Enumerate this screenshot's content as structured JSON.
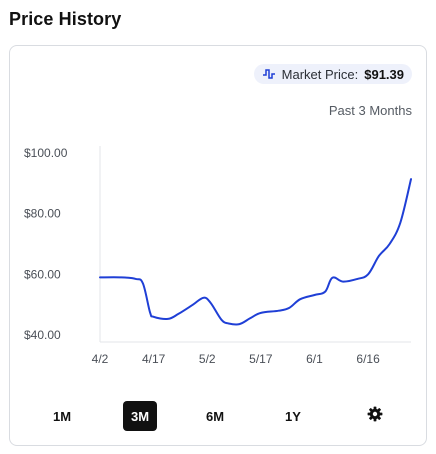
{
  "page": {
    "title": "Price History"
  },
  "market": {
    "label": "Market Price:",
    "value": "$91.39",
    "icon": "price-line-icon"
  },
  "range_label": "Past 3 Months",
  "ranges": [
    {
      "label": "1M",
      "active": false
    },
    {
      "label": "3M",
      "active": true
    },
    {
      "label": "6M",
      "active": false
    },
    {
      "label": "1Y",
      "active": false
    }
  ],
  "settings_icon": "gear-icon",
  "colors": {
    "line": "#1f3fd6",
    "active_bg": "#111111",
    "pill_bg": "#eef1fb"
  },
  "chart_data": {
    "type": "line",
    "title": "",
    "xlabel": "",
    "ylabel": "",
    "yticks": [
      "$100.00",
      "$80.00",
      "$60.00",
      "$40.00"
    ],
    "ytick_values": [
      100,
      80,
      60,
      40
    ],
    "xticks": [
      "4/2",
      "4/17",
      "5/2",
      "5/17",
      "6/1",
      "6/16"
    ],
    "ylim": [
      40,
      100
    ],
    "series": [
      {
        "values": [
          [
            "4/2",
            59.0
          ],
          [
            "4/8",
            59.0
          ],
          [
            "4/12",
            58.5
          ],
          [
            "4/14",
            57.0
          ],
          [
            "4/16",
            47.5
          ],
          [
            "4/17",
            46.0
          ],
          [
            "4/21",
            45.3
          ],
          [
            "4/24",
            47.0
          ],
          [
            "4/28",
            50.0
          ],
          [
            "5/1",
            52.3
          ],
          [
            "5/3",
            50.5
          ],
          [
            "5/6",
            45.0
          ],
          [
            "5/8",
            43.8
          ],
          [
            "5/11",
            43.6
          ],
          [
            "5/14",
            45.5
          ],
          [
            "5/17",
            47.3
          ],
          [
            "5/22",
            48.0
          ],
          [
            "5/25",
            49.0
          ],
          [
            "5/28",
            51.8
          ],
          [
            "6/1",
            53.2
          ],
          [
            "6/4",
            54.3
          ],
          [
            "6/6",
            58.9
          ],
          [
            "6/9",
            57.6
          ],
          [
            "6/13",
            58.5
          ],
          [
            "6/16",
            60.0
          ],
          [
            "6/19",
            66.0
          ],
          [
            "6/22",
            70.0
          ],
          [
            "6/25",
            77.0
          ],
          [
            "6/28",
            91.39
          ]
        ]
      }
    ]
  }
}
